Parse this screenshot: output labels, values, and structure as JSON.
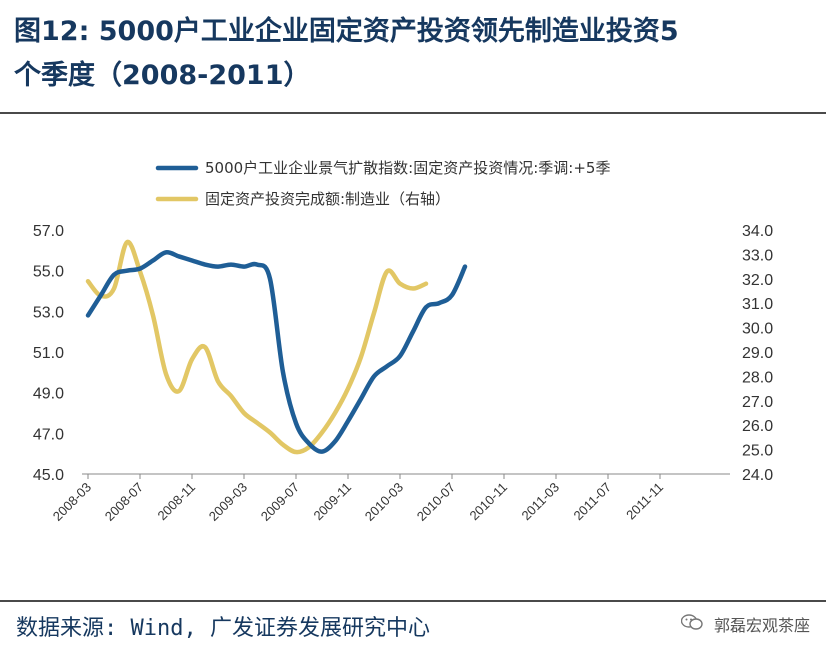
{
  "header": {
    "title_line1": "图12:  5000户工业企业固定资产投资领先制造业投资5",
    "title_line2": "个季度（2008-2011）"
  },
  "footer": {
    "source": "数据来源: Wind, 广发证券发展研究中心",
    "brand": "郭磊宏观茶座",
    "brand_icon": "wechat-icon"
  },
  "chart_data": {
    "type": "line",
    "x": [
      "2008-03",
      "2008-07",
      "2008-11",
      "2009-03",
      "2009-07",
      "2009-11",
      "2010-03",
      "2010-07",
      "2010-11",
      "2011-03",
      "2011-07",
      "2011-11"
    ],
    "left_axis": {
      "ylim": [
        45.0,
        57.0
      ],
      "ticks": [
        "57.0",
        "55.0",
        "53.0",
        "51.0",
        "49.0",
        "47.0",
        "45.0"
      ]
    },
    "right_axis": {
      "ylim": [
        24.0,
        34.0
      ],
      "ticks": [
        "34.0",
        "33.0",
        "32.0",
        "31.0",
        "30.0",
        "29.0",
        "28.0",
        "27.0",
        "26.0",
        "25.0",
        "24.0"
      ]
    },
    "series": [
      {
        "name": "5000户工业企业景气扩散指数:固定资产投资情况:季调:+5季",
        "axis": "left",
        "color": "#1f5e96",
        "points": [
          [
            0,
            52.8
          ],
          [
            1,
            53.8
          ],
          [
            2,
            54.8
          ],
          [
            3,
            55.0
          ],
          [
            4,
            55.1
          ],
          [
            5,
            55.5
          ],
          [
            6,
            55.9
          ],
          [
            7,
            55.7
          ],
          [
            8,
            55.5
          ],
          [
            9,
            55.3
          ],
          [
            10,
            55.2
          ],
          [
            11,
            55.3
          ],
          [
            12,
            55.2
          ],
          [
            13,
            55.3
          ],
          [
            14,
            54.6
          ],
          [
            15,
            50.0
          ],
          [
            16,
            47.5
          ],
          [
            17,
            46.5
          ],
          [
            18,
            46.1
          ],
          [
            19,
            46.6
          ],
          [
            20,
            47.6
          ],
          [
            21,
            48.7
          ],
          [
            22,
            49.8
          ],
          [
            23,
            50.3
          ],
          [
            24,
            50.8
          ],
          [
            25,
            52.0
          ],
          [
            26,
            53.2
          ],
          [
            27,
            53.4
          ],
          [
            28,
            53.8
          ],
          [
            29,
            55.2
          ]
        ]
      },
      {
        "name": "固定资产投资完成额:制造业（右轴）",
        "axis": "right",
        "color": "#e2c765",
        "points": [
          [
            0,
            31.9
          ],
          [
            1,
            31.3
          ],
          [
            2,
            31.6
          ],
          [
            3,
            33.5
          ],
          [
            4,
            32.3
          ],
          [
            5,
            30.5
          ],
          [
            6,
            28.1
          ],
          [
            7,
            27.4
          ],
          [
            8,
            28.7
          ],
          [
            9,
            29.2
          ],
          [
            10,
            27.8
          ],
          [
            11,
            27.2
          ],
          [
            12,
            26.5
          ],
          [
            13,
            26.1
          ],
          [
            14,
            25.7
          ],
          [
            15,
            25.2
          ],
          [
            16,
            24.9
          ],
          [
            17,
            25.1
          ],
          [
            18,
            25.7
          ],
          [
            19,
            26.5
          ],
          [
            20,
            27.5
          ],
          [
            21,
            28.8
          ],
          [
            22,
            30.6
          ],
          [
            23,
            32.3
          ],
          [
            24,
            31.8
          ],
          [
            25,
            31.6
          ],
          [
            26,
            31.8
          ]
        ]
      }
    ]
  }
}
